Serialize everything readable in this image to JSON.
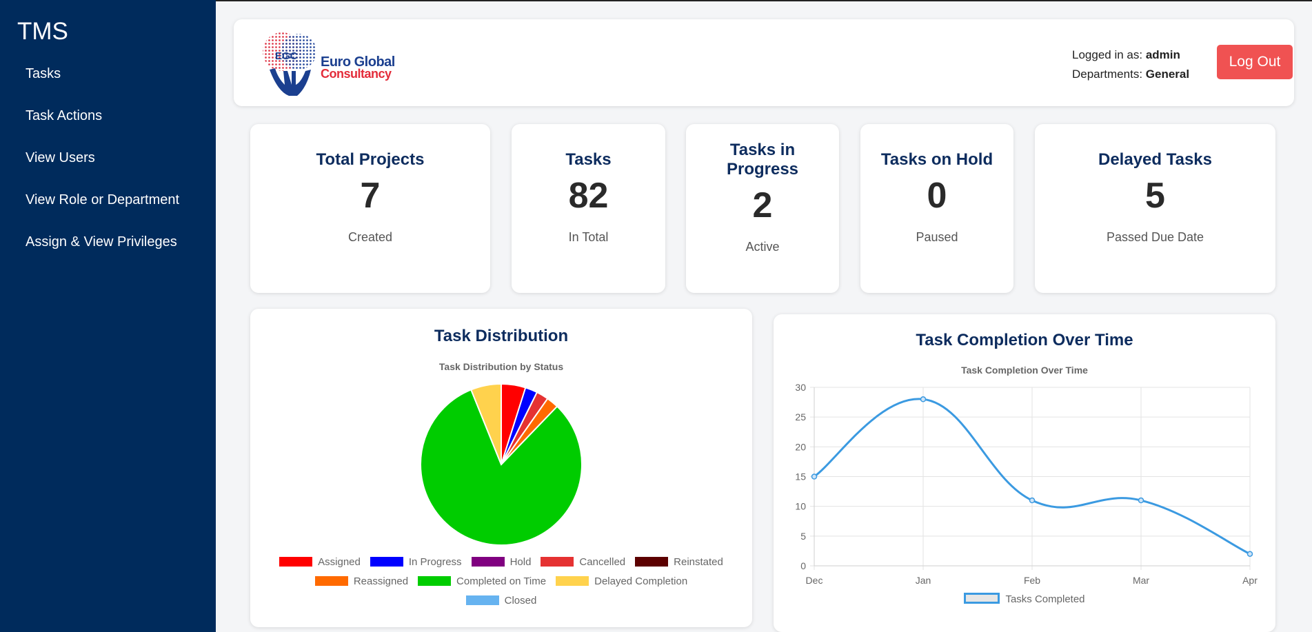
{
  "sidebar": {
    "brand": "TMS",
    "items": [
      {
        "label": "Tasks"
      },
      {
        "label": "Task Actions"
      },
      {
        "label": "View Users"
      },
      {
        "label": "View Role or Department"
      },
      {
        "label": "Assign & View Privileges"
      }
    ]
  },
  "header": {
    "logo_mark": "EGC",
    "logo_line1": "Euro Global",
    "logo_line2": "Consultancy",
    "logged_in_label": "Logged in as:",
    "logged_in_user": "admin",
    "departments_label": "Departments:",
    "departments_value": "General",
    "logout_label": "Log Out"
  },
  "stats": [
    {
      "title": "Total Projects",
      "value": "7",
      "sub": "Created"
    },
    {
      "title": "Tasks",
      "value": "82",
      "sub": "In Total"
    },
    {
      "title": "Tasks in Progress",
      "value": "2",
      "sub": "Active"
    },
    {
      "title": "Tasks on Hold",
      "value": "0",
      "sub": "Paused"
    },
    {
      "title": "Delayed Tasks",
      "value": "5",
      "sub": "Passed Due Date"
    }
  ],
  "colors": {
    "sidebar_bg": "#002b5c",
    "accent_title": "#0d2c5e",
    "logout_bg": "#f05252",
    "line": "#3b9ae1"
  },
  "chart_data": [
    {
      "type": "pie",
      "panel_title": "Task Distribution",
      "title": "Task Distribution by Status",
      "legend_position": "bottom",
      "slices": [
        {
          "label": "Assigned",
          "value": 4,
          "color": "#ff0000"
        },
        {
          "label": "In Progress",
          "value": 2,
          "color": "#0000ff"
        },
        {
          "label": "Hold",
          "value": 0,
          "color": "#800080"
        },
        {
          "label": "Cancelled",
          "value": 2,
          "color": "#e53232"
        },
        {
          "label": "Reinstated",
          "value": 0,
          "color": "#5c0000"
        },
        {
          "label": "Reassigned",
          "value": 2,
          "color": "#ff6a00"
        },
        {
          "label": "Completed on Time",
          "value": 67,
          "color": "#00cc00"
        },
        {
          "label": "Delayed Completion",
          "value": 5,
          "color": "#ffd24d"
        },
        {
          "label": "Closed",
          "value": 0,
          "color": "#66b3f0"
        }
      ]
    },
    {
      "type": "line",
      "panel_title": "Task Completion Over Time",
      "title": "Task Completion Over Time",
      "categories": [
        "Dec",
        "Jan",
        "Feb",
        "Mar",
        "Apr"
      ],
      "series": [
        {
          "name": "Tasks Completed",
          "values": [
            15,
            28,
            11,
            11,
            2
          ],
          "color": "#3b9ae1"
        }
      ],
      "ylim": [
        0,
        30
      ],
      "yticks": [
        "0",
        "5",
        "10",
        "15",
        "20",
        "25",
        "30"
      ],
      "grid": true,
      "legend_position": "bottom"
    }
  ]
}
